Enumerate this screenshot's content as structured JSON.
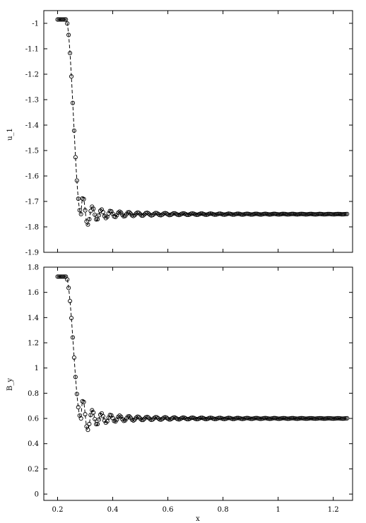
{
  "chart_data": [
    {
      "type": "line",
      "ylabel": "u_1",
      "xlabel": "",
      "xlim": [
        0.15,
        1.27
      ],
      "ylim": [
        -1.9,
        -0.95
      ],
      "yticks": [
        -1,
        -1.1,
        -1.2,
        -1.3,
        -1.4,
        -1.5,
        -1.6,
        -1.7,
        -1.8,
        -1.9
      ],
      "ytick_labels": [
        "-1",
        "-1.1",
        "-1.2",
        "-1.3",
        "-1.4",
        "-1.5",
        "-1.6",
        "-1.7",
        "-1.8",
        "-1.9"
      ],
      "xticks": [
        0.2,
        0.4,
        0.6,
        0.8,
        1.0,
        1.2
      ],
      "xtick_labels": [
        "",
        "",
        "",
        "",
        "",
        ""
      ],
      "grid": false,
      "legend": "none",
      "profile": {
        "x_start": 0.2,
        "x_end": 1.25,
        "left_state": -0.985,
        "right_state": -1.75,
        "ramp_start": 0.23,
        "ramp_end": 0.285,
        "oscillation_amplitude": 0.095,
        "oscillation_wavelength": 0.033,
        "oscillation_decay_x": 0.95
      },
      "series": [
        {
          "style": "dashed-line",
          "color": "#000000"
        },
        {
          "style": "open-circle-markers",
          "marker_spacing": 0.005,
          "color": "#000000"
        }
      ]
    },
    {
      "type": "line",
      "ylabel": "B_y",
      "xlabel": "x",
      "xlim": [
        0.15,
        1.27
      ],
      "ylim": [
        -0.05,
        1.8
      ],
      "yticks": [
        0,
        0.2,
        0.4,
        0.6,
        0.8,
        1,
        1.2,
        1.4,
        1.6,
        1.8
      ],
      "ytick_labels": [
        "0",
        "0.2",
        "0.4",
        "0.6",
        "0.8",
        "1",
        "1.2",
        "1.4",
        "1.6",
        "1.8"
      ],
      "xticks": [
        0.2,
        0.4,
        0.6,
        0.8,
        1.0,
        1.2
      ],
      "xtick_labels": [
        "0.2",
        "0.4",
        "0.6",
        "0.8",
        "1",
        "1.2"
      ],
      "grid": false,
      "legend": "none",
      "profile": {
        "x_start": 0.2,
        "x_end": 1.25,
        "left_state": 1.725,
        "right_state": 0.6,
        "ramp_start": 0.23,
        "ramp_end": 0.285,
        "oscillation_amplitude": 0.21,
        "oscillation_wavelength": 0.033,
        "oscillation_decay_x": 0.95
      },
      "series": [
        {
          "style": "dashed-line",
          "color": "#000000"
        },
        {
          "style": "open-circle-markers",
          "marker_spacing": 0.005,
          "color": "#000000"
        }
      ]
    }
  ]
}
